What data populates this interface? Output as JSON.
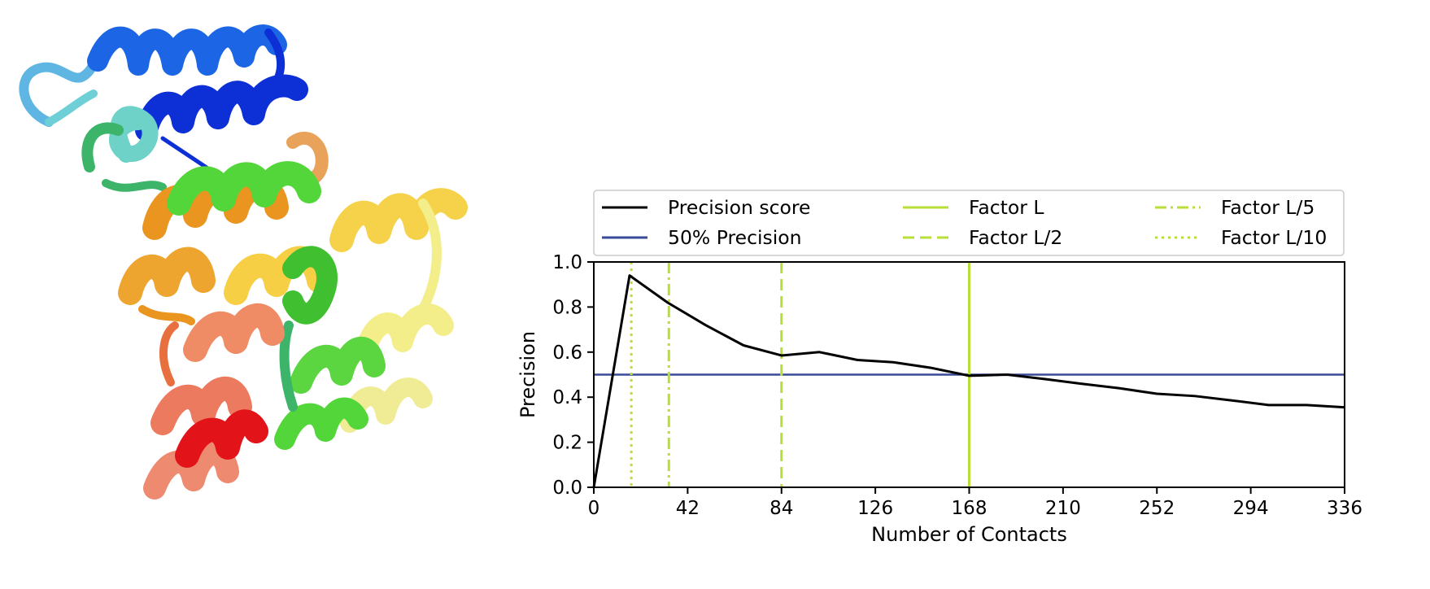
{
  "figure": {
    "protein_structure": {
      "description_icon": "protein-ribbon-icon",
      "colors": [
        "#0d2fd6",
        "#1d68e8",
        "#4fb0e6",
        "#6fd2c9",
        "#3cb46a",
        "#52d63a",
        "#e9a22a",
        "#f5d24a",
        "#f4ee8a",
        "#ee8a66",
        "#e2141a"
      ]
    }
  },
  "chart_data": {
    "type": "line",
    "xlabel": "Number of Contacts",
    "ylabel": "Precision",
    "xlim": [
      0,
      336
    ],
    "ylim": [
      0,
      1.0
    ],
    "x_ticks": [
      0,
      42,
      84,
      126,
      168,
      210,
      252,
      294,
      336
    ],
    "y_ticks": [
      0.0,
      0.2,
      0.4,
      0.6,
      0.8,
      1.0
    ],
    "x_tick_labels": [
      "0",
      "42",
      "84",
      "126",
      "168",
      "210",
      "252",
      "294",
      "336"
    ],
    "y_tick_labels": [
      "0.0",
      "0.2",
      "0.4",
      "0.6",
      "0.8",
      "1.0"
    ],
    "grid": false,
    "legend_position": "top",
    "series": [
      {
        "name": "Precision score",
        "color": "#000000",
        "style": "solid",
        "x": [
          0,
          16,
          33,
          50,
          67,
          84,
          101,
          118,
          134,
          151,
          168,
          185,
          202,
          218,
          235,
          252,
          269,
          286,
          302,
          319,
          336
        ],
        "y": [
          0.0,
          0.94,
          0.82,
          0.72,
          0.63,
          0.585,
          0.6,
          0.565,
          0.555,
          0.53,
          0.495,
          0.5,
          0.48,
          0.46,
          0.44,
          0.415,
          0.405,
          0.385,
          0.365,
          0.365,
          0.355
        ]
      }
    ],
    "reference_lines": [
      {
        "name": "50% Precision",
        "orientation": "horizontal",
        "value": 0.5,
        "color": "#3a4a9a",
        "style": "solid"
      },
      {
        "name": "Factor L",
        "orientation": "vertical",
        "value": 168,
        "color": "#b8df38",
        "style": "solid"
      },
      {
        "name": "Factor L/2",
        "orientation": "vertical",
        "value": 84,
        "color": "#b8df38",
        "style": "dashed"
      },
      {
        "name": "Factor L/5",
        "orientation": "vertical",
        "value": 33.6,
        "color": "#b8df38",
        "style": "dashdot"
      },
      {
        "name": "Factor L/10",
        "orientation": "vertical",
        "value": 16.8,
        "color": "#b8df38",
        "style": "dotted"
      }
    ],
    "legend": [
      {
        "label": "Precision score",
        "color": "#000000",
        "style": "solid"
      },
      {
        "label": "Factor L",
        "color": "#b8df38",
        "style": "solid"
      },
      {
        "label": "Factor L/5",
        "color": "#b8df38",
        "style": "dashdot"
      },
      {
        "label": "50% Precision",
        "color": "#3a4a9a",
        "style": "solid"
      },
      {
        "label": "Factor L/2",
        "color": "#b8df38",
        "style": "dashed"
      },
      {
        "label": "Factor L/10",
        "color": "#b8df38",
        "style": "dotted"
      }
    ]
  }
}
